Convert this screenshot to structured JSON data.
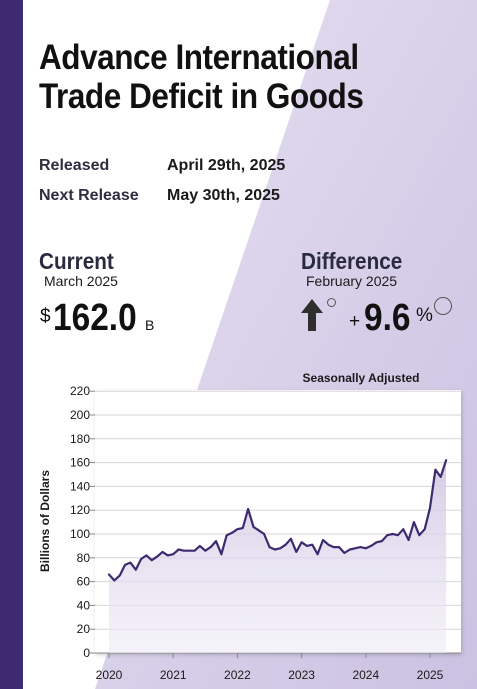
{
  "title_line1": "Advance International",
  "title_line2": "Trade Deficit in Goods",
  "released": {
    "label": "Released",
    "value": "April 29th, 2025"
  },
  "next_release": {
    "label": "Next Release",
    "value": "May 30th, 2025"
  },
  "current": {
    "label": "Current",
    "period": "March 2025",
    "currency": "$",
    "value": "162.0",
    "unit": "B"
  },
  "difference": {
    "label": "Difference",
    "period": "February 2025",
    "sign": "+",
    "value": "9.6",
    "unit": "%"
  },
  "colors": {
    "accent": "#3d2a70",
    "line": "#3d2a70",
    "background_tint": "#d9d2ea"
  },
  "icons": {
    "difference_direction": "arrow-up-icon"
  },
  "chart_data": {
    "type": "line",
    "title": "Seasonally Adjusted",
    "xlabel": "",
    "ylabel": "Billions of Dollars",
    "ylim": [
      0,
      225
    ],
    "yticks": [
      0,
      20,
      40,
      60,
      80,
      100,
      120,
      140,
      160,
      180,
      200,
      220
    ],
    "xticks": [
      "2020",
      "2021",
      "2022",
      "2023",
      "2024",
      "2025"
    ],
    "grid": true,
    "x_start": "2020-01",
    "x_step": "month",
    "values": [
      66,
      61,
      65,
      74,
      76,
      70,
      79,
      82,
      78,
      81,
      85,
      82,
      83,
      87,
      86,
      86,
      86,
      90,
      86,
      89,
      94,
      83,
      99,
      101,
      104,
      105,
      121,
      106,
      103,
      100,
      89,
      87,
      88,
      91,
      96,
      85,
      93,
      90,
      91,
      83,
      95,
      91,
      89,
      89,
      84,
      87,
      88,
      89,
      88,
      90,
      93,
      94,
      99,
      100,
      99,
      104,
      95,
      110,
      99,
      104,
      122,
      154,
      148,
      162
    ]
  }
}
